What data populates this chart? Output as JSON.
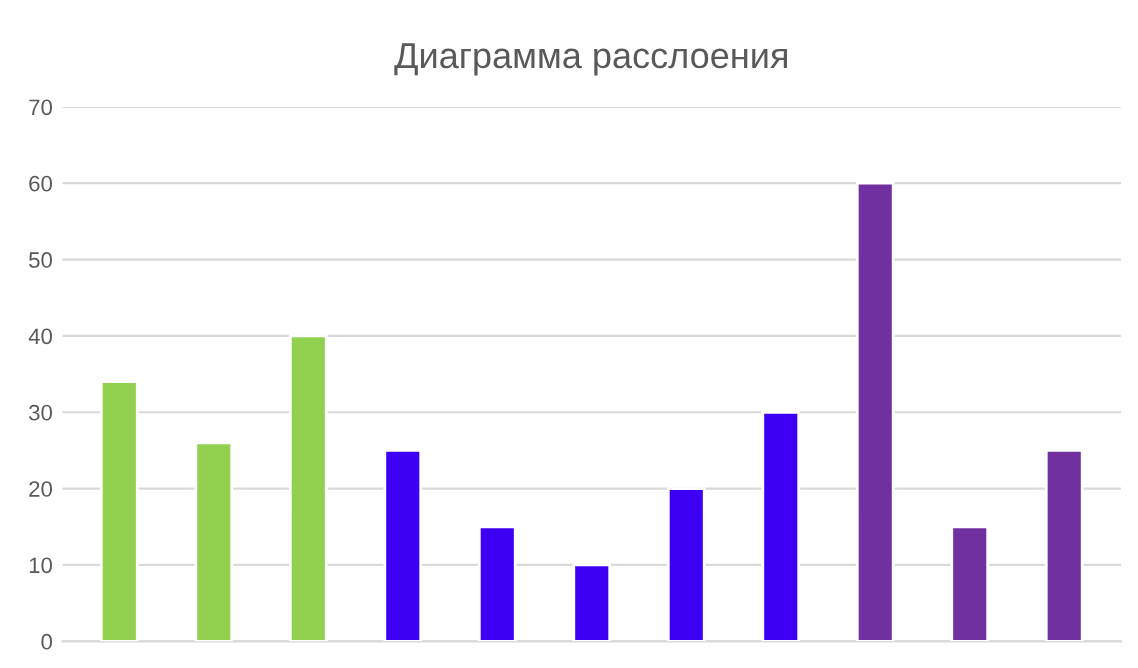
{
  "chart_data": {
    "type": "bar",
    "title": "Диаграмма расслоения",
    "categories": [
      null,
      null,
      null,
      null,
      null,
      null,
      null,
      null,
      null,
      null,
      null
    ],
    "values": [
      34,
      26,
      40,
      25,
      15,
      10,
      20,
      30,
      60,
      15,
      25
    ],
    "colors": [
      "#92d050",
      "#92d050",
      "#92d050",
      "#3d00f5",
      "#3d00f5",
      "#3d00f5",
      "#3d00f5",
      "#3d00f5",
      "#7030a0",
      "#7030a0",
      "#7030a0"
    ],
    "ylim": [
      0,
      70
    ],
    "yticks": [
      0,
      10,
      20,
      30,
      40,
      50,
      60,
      70
    ],
    "grid": "y",
    "tick_labels": "y"
  }
}
